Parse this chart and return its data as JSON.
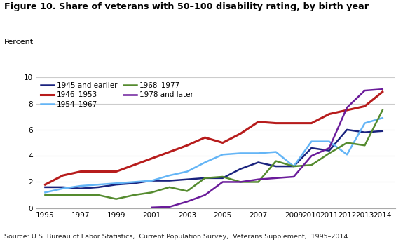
{
  "title": "Figure 10. Share of veterans with 50–100 disability rating, by birth year",
  "ylabel": "Percent",
  "source": "Source: U.S. Bureau of Labor Statistics,  Current Population Survey,  Veterans Supplement,  1995–2014.",
  "ylim": [
    0,
    10
  ],
  "years": [
    1995,
    1996,
    1997,
    1998,
    1999,
    2000,
    2001,
    2002,
    2003,
    2004,
    2005,
    2006,
    2007,
    2008,
    2009,
    2010,
    2011,
    2012,
    2013,
    2014
  ],
  "xtick_labels": [
    "1995",
    "1997",
    "1999",
    "2001",
    "2003",
    "2005",
    "2007",
    "2009",
    "2010",
    "2011",
    "2012",
    "2013",
    "2014"
  ],
  "xtick_positions": [
    1995,
    1997,
    1999,
    2001,
    2003,
    2005,
    2007,
    2009,
    2010,
    2011,
    2012,
    2013,
    2014
  ],
  "series": [
    {
      "label": "1945 and earlier",
      "color": "#1a237e",
      "linewidth": 1.8,
      "values": [
        1.6,
        1.6,
        1.5,
        1.6,
        1.8,
        1.9,
        2.1,
        2.1,
        2.2,
        2.3,
        2.3,
        3.0,
        3.5,
        3.2,
        3.2,
        4.6,
        4.4,
        6.0,
        5.8,
        5.9
      ]
    },
    {
      "label": "1946–1953",
      "color": "#b71c1c",
      "linewidth": 2.2,
      "values": [
        1.8,
        2.5,
        2.8,
        2.8,
        2.8,
        3.3,
        3.8,
        4.3,
        4.8,
        5.4,
        5.0,
        5.7,
        6.6,
        6.5,
        6.5,
        6.5,
        7.2,
        7.5,
        7.8,
        8.9
      ]
    },
    {
      "label": "1954–1967",
      "color": "#64b5f6",
      "linewidth": 1.8,
      "values": [
        1.2,
        1.5,
        1.7,
        1.8,
        1.9,
        2.0,
        2.1,
        2.5,
        2.8,
        3.5,
        4.1,
        4.2,
        4.2,
        4.3,
        3.2,
        5.1,
        5.1,
        4.1,
        6.5,
        6.9
      ]
    },
    {
      "label": "1968–1977",
      "color": "#558b2f",
      "linewidth": 1.8,
      "values": [
        1.0,
        1.0,
        1.0,
        1.0,
        0.7,
        1.0,
        1.2,
        1.6,
        1.3,
        2.3,
        2.4,
        2.0,
        2.0,
        3.6,
        3.2,
        3.3,
        4.2,
        5.0,
        4.8,
        7.5
      ]
    },
    {
      "label": "1978 and later",
      "color": "#6a1b9a",
      "linewidth": 1.8,
      "values": [
        null,
        null,
        null,
        null,
        null,
        null,
        0.05,
        0.1,
        0.5,
        1.0,
        2.0,
        2.0,
        2.2,
        2.3,
        2.4,
        4.0,
        4.6,
        7.7,
        9.0,
        9.1
      ]
    }
  ],
  "ytick_positions": [
    0,
    2,
    4,
    6,
    8,
    10
  ],
  "ytick_labels": [
    "0",
    "2",
    "4",
    "6",
    "8",
    "10"
  ],
  "bg_color": "#ffffff",
  "grid_color": "#cccccc"
}
